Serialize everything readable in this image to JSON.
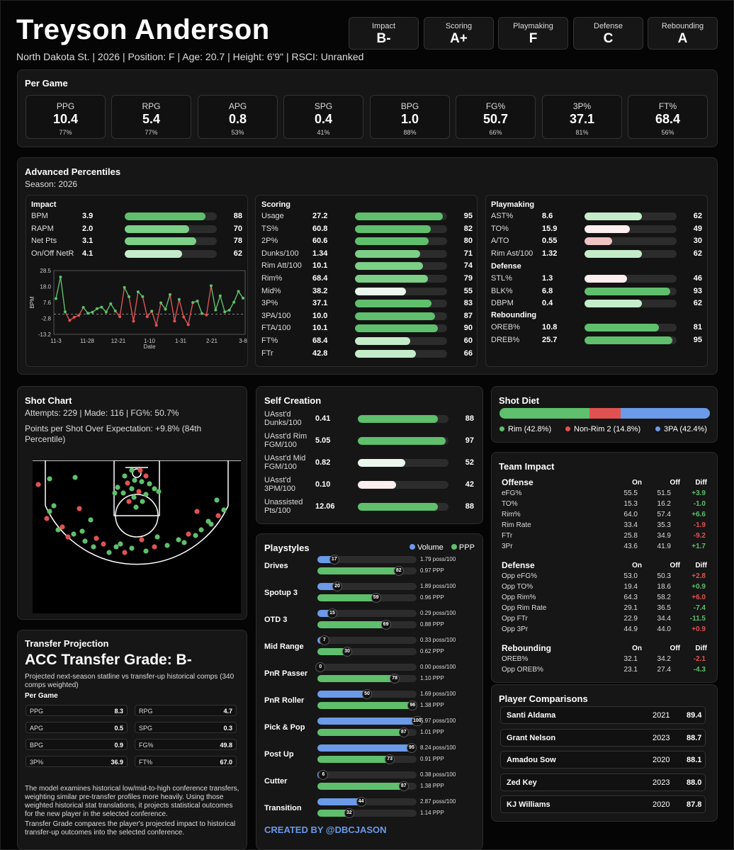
{
  "player": {
    "name": "Treyson Anderson",
    "subtitle": "North Dakota St. | 2026 | Position: F | Age: 20.7 | Height: 6'9\" | RSCI: Unranked"
  },
  "grades": [
    {
      "label": "Impact",
      "value": "B-"
    },
    {
      "label": "Scoring",
      "value": "A+"
    },
    {
      "label": "Playmaking",
      "value": "F"
    },
    {
      "label": "Defense",
      "value": "C"
    },
    {
      "label": "Rebounding",
      "value": "A"
    }
  ],
  "per_game": {
    "title": "Per Game",
    "stats": [
      {
        "label": "PPG",
        "value": "10.4",
        "pct": "77%"
      },
      {
        "label": "RPG",
        "value": "5.4",
        "pct": "77%"
      },
      {
        "label": "APG",
        "value": "0.8",
        "pct": "53%"
      },
      {
        "label": "SPG",
        "value": "0.4",
        "pct": "41%"
      },
      {
        "label": "BPG",
        "value": "1.0",
        "pct": "88%"
      },
      {
        "label": "FG%",
        "value": "50.7",
        "pct": "66%"
      },
      {
        "label": "3P%",
        "value": "37.1",
        "pct": "81%"
      },
      {
        "label": "FT%",
        "value": "68.4",
        "pct": "56%"
      }
    ]
  },
  "advanced": {
    "title": "Advanced Percentiles",
    "season": "Season: 2026",
    "impact": {
      "title": "Impact",
      "rows": [
        {
          "name": "BPM",
          "value": "3.9",
          "pct": 88
        },
        {
          "name": "RAPM",
          "value": "2.0",
          "pct": 70
        },
        {
          "name": "Net Pts",
          "value": "3.1",
          "pct": 78
        },
        {
          "name": "On/Off NetR",
          "value": "4.1",
          "pct": 62
        }
      ]
    },
    "scoring": {
      "title": "Scoring",
      "rows": [
        {
          "name": "Usage",
          "value": "27.2",
          "pct": 95
        },
        {
          "name": "TS%",
          "value": "60.8",
          "pct": 82
        },
        {
          "name": "2P%",
          "value": "60.6",
          "pct": 80
        },
        {
          "name": "Dunks/100",
          "value": "1.34",
          "pct": 71
        },
        {
          "name": "Rim Att/100",
          "value": "10.1",
          "pct": 74
        },
        {
          "name": "Rim%",
          "value": "68.4",
          "pct": 79
        },
        {
          "name": "Mid%",
          "value": "38.2",
          "pct": 55
        },
        {
          "name": "3P%",
          "value": "37.1",
          "pct": 83
        },
        {
          "name": "3PA/100",
          "value": "10.0",
          "pct": 87
        },
        {
          "name": "FTA/100",
          "value": "10.1",
          "pct": 90
        },
        {
          "name": "FT%",
          "value": "68.4",
          "pct": 60
        },
        {
          "name": "FTr",
          "value": "42.8",
          "pct": 66
        }
      ]
    },
    "playmaking": {
      "title": "Playmaking",
      "rows": [
        {
          "name": "AST%",
          "value": "8.6",
          "pct": 62
        },
        {
          "name": "TO%",
          "value": "15.9",
          "pct": 49
        },
        {
          "name": "A/TO",
          "value": "0.55",
          "pct": 30
        },
        {
          "name": "Rim Ast/100",
          "value": "1.32",
          "pct": 62
        }
      ]
    },
    "defense": {
      "title": "Defense",
      "rows": [
        {
          "name": "STL%",
          "value": "1.3",
          "pct": 46
        },
        {
          "name": "BLK%",
          "value": "6.8",
          "pct": 93
        },
        {
          "name": "DBPM",
          "value": "0.4",
          "pct": 62
        }
      ]
    },
    "rebounding": {
      "title": "Rebounding",
      "rows": [
        {
          "name": "OREB%",
          "value": "10.8",
          "pct": 81
        },
        {
          "name": "DREB%",
          "value": "25.7",
          "pct": 95
        }
      ]
    }
  },
  "chart_data": {
    "type": "line",
    "title": "",
    "xlabel": "Date",
    "ylabel": "BPM",
    "x_ticks": [
      "11-3",
      "11-28",
      "12-21",
      "1-10",
      "1-31",
      "2-21",
      "3-8"
    ],
    "y_ticks": [
      "28.5",
      "18.0",
      "7.6",
      "-2.8",
      "-13.2"
    ],
    "ylim": [
      -13.2,
      28.5
    ],
    "zero_line": 0,
    "series": [
      {
        "values": [
          10.2,
          24.3,
          1.5,
          -4.1,
          -2.0,
          -0.8,
          4.4,
          0.6,
          1.3,
          3.6,
          4.6,
          1.4,
          6.8,
          2.1,
          -1.7,
          17.5,
          11.4,
          -4.6,
          14.6,
          11.5,
          -1.7,
          2.0,
          -7.3,
          7.4,
          3.2,
          12.8,
          -4.5,
          9.6,
          -1.9,
          -6.9,
          7.6,
          8.6,
          0.4,
          -0.5,
          18.6,
          2.7,
          12.0,
          1.5,
          2.6,
          7.8,
          14.9,
          10.5
        ]
      }
    ],
    "colors": {
      "positive": "#5fbf6c",
      "negative": "#e05252",
      "line": "#9a9a9a"
    }
  },
  "shot_chart": {
    "title": "Shot Chart",
    "summary": "Attempts: 229 | Made: 116 | FG%: 50.7%",
    "ppsoe": "Points per Shot Over Expectation: +9.8% (84th Percentile)"
  },
  "self_creation": {
    "title": "Self Creation",
    "rows": [
      {
        "name": "UAsst'd Dunks/100",
        "value": "0.41",
        "pct": 88
      },
      {
        "name": "UAsst'd Rim FGM/100",
        "value": "5.05",
        "pct": 97
      },
      {
        "name": "UAsst'd Mid FGM/100",
        "value": "0.82",
        "pct": 52
      },
      {
        "name": "UAsst'd 3PM/100",
        "value": "0.10",
        "pct": 42
      },
      {
        "name": "Unassisted Pts/100",
        "value": "12.06",
        "pct": 88
      }
    ]
  },
  "shot_diet": {
    "title": "Shot Diet",
    "segments": [
      {
        "label": "Rim (42.8%)",
        "pct": 42.8,
        "color": "#5fbf6c"
      },
      {
        "label": "Non-Rim 2 (14.8%)",
        "pct": 14.8,
        "color": "#e05252"
      },
      {
        "label": "3PA (42.4%)",
        "pct": 42.4,
        "color": "#6b9ae8"
      }
    ]
  },
  "team_impact": {
    "title": "Team Impact",
    "cols": [
      "On",
      "Off",
      "Diff"
    ],
    "groups": [
      {
        "title": "Offense",
        "rows": [
          [
            "eFG%",
            "55.5",
            "51.5",
            "+3.9"
          ],
          [
            "TO%",
            "15.3",
            "16.2",
            "-1.0"
          ],
          [
            "Rim%",
            "64.0",
            "57.4",
            "+6.6"
          ],
          [
            "Rim Rate",
            "33.4",
            "35.3",
            "-1.9"
          ],
          [
            "FTr",
            "25.8",
            "34.9",
            "-9.2"
          ],
          [
            "3Pr",
            "43.6",
            "41.9",
            "+1.7"
          ]
        ]
      },
      {
        "title": "Defense",
        "rows": [
          [
            "Opp eFG%",
            "53.0",
            "50.3",
            "+2.8"
          ],
          [
            "Opp TO%",
            "19.4",
            "18.6",
            "+0.9"
          ],
          [
            "Opp Rim%",
            "64.3",
            "58.2",
            "+6.0"
          ],
          [
            "Opp Rim Rate",
            "29.1",
            "36.5",
            "-7.4"
          ],
          [
            "Opp FTr",
            "22.9",
            "34.4",
            "-11.5"
          ],
          [
            "Opp 3Pr",
            "44.9",
            "44.0",
            "+0.9"
          ]
        ]
      },
      {
        "title": "Rebounding",
        "rows": [
          [
            "OREB%",
            "32.1",
            "34.2",
            "-2.1"
          ],
          [
            "Opp OREB%",
            "23.1",
            "27.4",
            "-4.3"
          ]
        ]
      }
    ],
    "diff_colors": [
      "#5fbf6c",
      "#5fbf6c",
      "#5fbf6c",
      "#e05252",
      "#e05252",
      "#5fbf6c",
      "#e05252",
      "#5fbf6c",
      "#e05252",
      "#5fbf6c",
      "#5fbf6c",
      "#e05252",
      "#e05252",
      "#5fbf6c"
    ]
  },
  "comparisons": {
    "title": "Player Comparisons",
    "rows": [
      {
        "name": "Santi Aldama",
        "year": "2021",
        "score": "89.4"
      },
      {
        "name": "Grant Nelson",
        "year": "2023",
        "score": "88.7"
      },
      {
        "name": "Amadou Sow",
        "year": "2020",
        "score": "88.1"
      },
      {
        "name": "Zed Key",
        "year": "2023",
        "score": "88.0"
      },
      {
        "name": "KJ Williams",
        "year": "2020",
        "score": "87.8"
      }
    ]
  },
  "playstyles": {
    "title": "Playstyles",
    "legend_volume": "Volume",
    "legend_ppp": "PPP",
    "rows": [
      {
        "name": "Drives",
        "vol_pct": 17,
        "ppp_pct": 82,
        "poss": "1.79 poss/100",
        "ppp": "0.97 PPP"
      },
      {
        "name": "Spotup 3",
        "vol_pct": 20,
        "ppp_pct": 59,
        "poss": "1.89 poss/100",
        "ppp": "0.96 PPP"
      },
      {
        "name": "OTD 3",
        "vol_pct": 15,
        "ppp_pct": 69,
        "poss": "0.29 poss/100",
        "ppp": "0.88 PPP"
      },
      {
        "name": "Mid Range",
        "vol_pct": 7,
        "ppp_pct": 30,
        "poss": "0.33 poss/100",
        "ppp": "0.62 PPP"
      },
      {
        "name": "PnR Passer",
        "vol_pct": 0,
        "ppp_pct": 78,
        "poss": "0.00 poss/100",
        "ppp": "1.10 PPP"
      },
      {
        "name": "PnR Roller",
        "vol_pct": 50,
        "ppp_pct": 96,
        "poss": "1.69 poss/100",
        "ppp": "1.38 PPP"
      },
      {
        "name": "Pick & Pop",
        "vol_pct": 100,
        "ppp_pct": 87,
        "poss": "5.97 poss/100",
        "ppp": "1.01 PPP"
      },
      {
        "name": "Post Up",
        "vol_pct": 95,
        "ppp_pct": 73,
        "poss": "8.24 poss/100",
        "ppp": "0.91 PPP"
      },
      {
        "name": "Cutter",
        "vol_pct": 6,
        "ppp_pct": 87,
        "poss": "0.38 poss/100",
        "ppp": "1.38 PPP"
      },
      {
        "name": "Transition",
        "vol_pct": 44,
        "ppp_pct": 32,
        "poss": "2.87 poss/100",
        "ppp": "1.14 PPP"
      }
    ],
    "credit": "CREATED BY @DBCJASON"
  },
  "transfer": {
    "title": "Transfer Projection",
    "grade": "ACC Transfer Grade: B-",
    "desc": "Projected next-season statline vs transfer-up historical comps (340 comps weighted)",
    "per_game_label": "Per Game",
    "stats": [
      [
        "PPG",
        "8.3"
      ],
      [
        "RPG",
        "4.7"
      ],
      [
        "APG",
        "0.5"
      ],
      [
        "SPG",
        "0.3"
      ],
      [
        "BPG",
        "0.9"
      ],
      [
        "FG%",
        "49.8"
      ],
      [
        "3P%",
        "36.9"
      ],
      [
        "FT%",
        "67.0"
      ]
    ],
    "note1": "The model examines historical low/mid-to-high conference transfers, weighting similar pre-transfer profiles more heavily. Using those weighted historical stat translations, it projects statistical outcomes for the new player in the selected conference.",
    "note2": "Transfer Grade compares the player's projected impact to historical transfer-up outcomes into the selected conference."
  }
}
